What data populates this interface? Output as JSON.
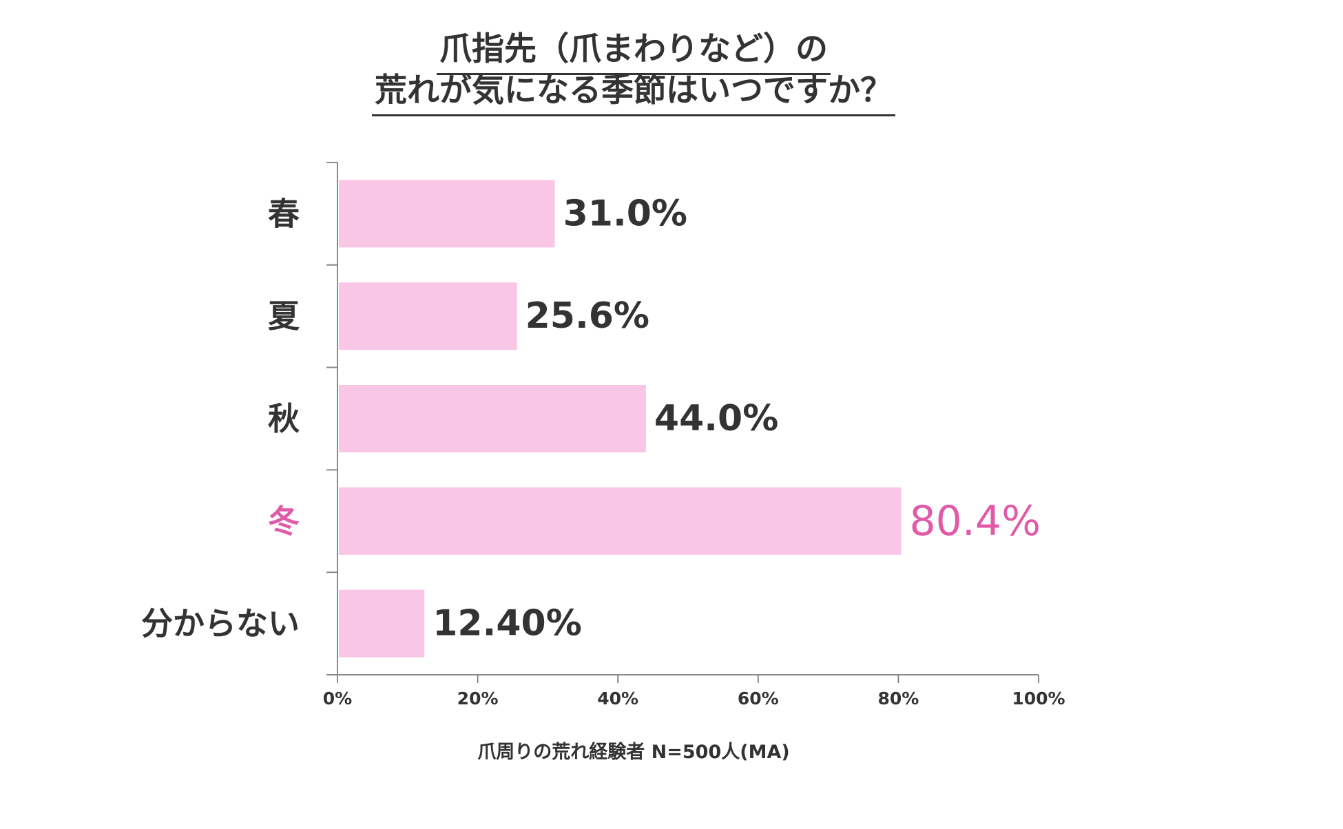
{
  "title": {
    "line1": "爪指先（爪まわりなど）の",
    "line2": "荒れが気になる季節はいつですか？"
  },
  "footnote": "爪周りの荒れ経験者 N=500人(MA)",
  "colors": {
    "bar": "#f9c6e6",
    "text": "#333333",
    "highlight": "#e05aa8",
    "axis": "#888888"
  },
  "chart_data": {
    "type": "bar",
    "orientation": "horizontal",
    "categories": [
      "春",
      "夏",
      "秋",
      "冬",
      "分からない"
    ],
    "values": [
      31.0,
      25.6,
      44.0,
      80.4,
      12.4
    ],
    "value_labels": [
      "31.0%",
      "25.6%",
      "44.0%",
      "80.4%",
      "12.40%"
    ],
    "highlight_index": 3,
    "xlim": [
      0,
      100
    ],
    "xticks": [
      0,
      20,
      40,
      60,
      80,
      100
    ],
    "xtick_labels": [
      "0%",
      "20%",
      "40%",
      "60%",
      "80%",
      "100%"
    ],
    "grid": false,
    "legend": "none"
  }
}
